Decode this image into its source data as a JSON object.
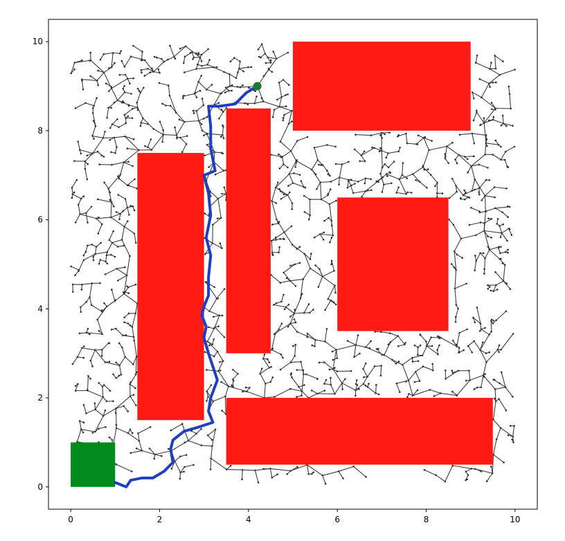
{
  "chart_data": {
    "type": "scatter",
    "title": "",
    "xlabel": "",
    "ylabel": "",
    "xlim": [
      -0.5,
      10.5
    ],
    "ylim": [
      -0.5,
      10.5
    ],
    "grid": false,
    "xticks": [
      0,
      2,
      4,
      6,
      8,
      10
    ],
    "yticks": [
      0,
      2,
      4,
      6,
      8,
      10
    ],
    "xtick_labels": [
      "0",
      "2",
      "4",
      "6",
      "8",
      "10"
    ],
    "ytick_labels": [
      "0",
      "2",
      "4",
      "6",
      "8",
      "10"
    ],
    "obstacles": [
      {
        "x": 1.5,
        "y": 1.5,
        "w": 1.5,
        "h": 6.0
      },
      {
        "x": 3.5,
        "y": 3.0,
        "w": 1.0,
        "h": 5.5
      },
      {
        "x": 5.0,
        "y": 8.0,
        "w": 4.0,
        "h": 2.0
      },
      {
        "x": 6.0,
        "y": 3.5,
        "w": 2.5,
        "h": 3.0
      },
      {
        "x": 3.5,
        "y": 0.5,
        "w": 6.0,
        "h": 1.5
      }
    ],
    "goal_region": {
      "x": 0.0,
      "y": 0.0,
      "w": 1.0,
      "h": 1.0
    },
    "start_point": {
      "x": 4.2,
      "y": 9.0
    },
    "path": [
      [
        4.2,
        9.0
      ],
      [
        3.95,
        8.85
      ],
      [
        3.7,
        8.6
      ],
      [
        3.35,
        8.55
      ],
      [
        3.1,
        8.55
      ],
      [
        3.15,
        8.1
      ],
      [
        3.15,
        7.6
      ],
      [
        3.25,
        7.1
      ],
      [
        3.0,
        7.0
      ],
      [
        3.1,
        6.6
      ],
      [
        3.15,
        6.1
      ],
      [
        3.05,
        5.6
      ],
      [
        3.15,
        5.2
      ],
      [
        3.1,
        4.7
      ],
      [
        3.1,
        4.3
      ],
      [
        3.0,
        4.05
      ],
      [
        2.95,
        3.85
      ],
      [
        3.05,
        3.6
      ],
      [
        3.0,
        3.35
      ],
      [
        3.1,
        3.0
      ],
      [
        3.2,
        2.7
      ],
      [
        3.3,
        2.4
      ],
      [
        3.15,
        2.0
      ],
      [
        3.1,
        1.7
      ],
      [
        3.2,
        1.45
      ],
      [
        2.9,
        1.35
      ],
      [
        2.55,
        1.25
      ],
      [
        2.3,
        1.05
      ],
      [
        2.25,
        0.85
      ],
      [
        2.3,
        0.55
      ],
      [
        2.1,
        0.35
      ],
      [
        1.85,
        0.2
      ],
      [
        1.6,
        0.2
      ],
      [
        1.35,
        0.15
      ],
      [
        1.25,
        0.0
      ],
      [
        1.0,
        0.1
      ]
    ],
    "colors": {
      "obstacle": "#ff1a14",
      "goal": "#008b1a",
      "start": "#1e7a2e",
      "path": "#1f3fbf",
      "tree_edge": "#3c3c3c",
      "tree_node": "#2e2e2e"
    }
  }
}
